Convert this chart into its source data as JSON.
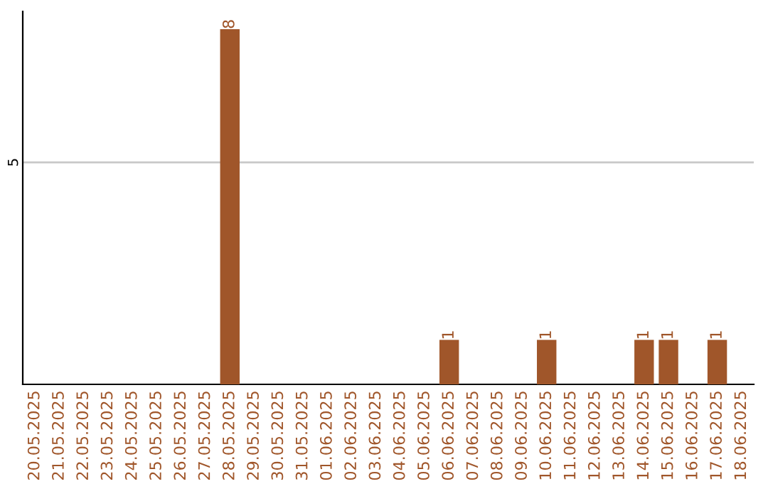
{
  "chart_data": {
    "type": "bar",
    "categories": [
      "20.05.2025",
      "21.05.2025",
      "22.05.2025",
      "23.05.2025",
      "24.05.2025",
      "25.05.2025",
      "26.05.2025",
      "27.05.2025",
      "28.05.2025",
      "29.05.2025",
      "30.05.2025",
      "31.05.2025",
      "01.06.2025",
      "02.06.2025",
      "03.06.2025",
      "04.06.2025",
      "05.06.2025",
      "06.06.2025",
      "07.06.2025",
      "08.06.2025",
      "09.06.2025",
      "10.06.2025",
      "11.06.2025",
      "12.06.2025",
      "13.06.2025",
      "14.06.2025",
      "15.06.2025",
      "16.06.2025",
      "17.06.2025",
      "18.06.2025"
    ],
    "values": [
      0,
      0,
      0,
      0,
      0,
      0,
      0,
      0,
      8,
      0,
      0,
      0,
      0,
      0,
      0,
      0,
      0,
      1,
      0,
      0,
      0,
      1,
      0,
      0,
      0,
      1,
      1,
      0,
      1,
      0
    ],
    "value_labels": [
      null,
      null,
      null,
      null,
      null,
      null,
      null,
      null,
      "8",
      null,
      null,
      null,
      null,
      null,
      null,
      null,
      null,
      "1",
      null,
      null,
      null,
      "1",
      null,
      null,
      null,
      "1",
      "1",
      null,
      "1",
      null
    ],
    "color": "#a0562a",
    "ylim": [
      0,
      8.4
    ],
    "yticks": [
      5
    ],
    "grid": "y"
  }
}
